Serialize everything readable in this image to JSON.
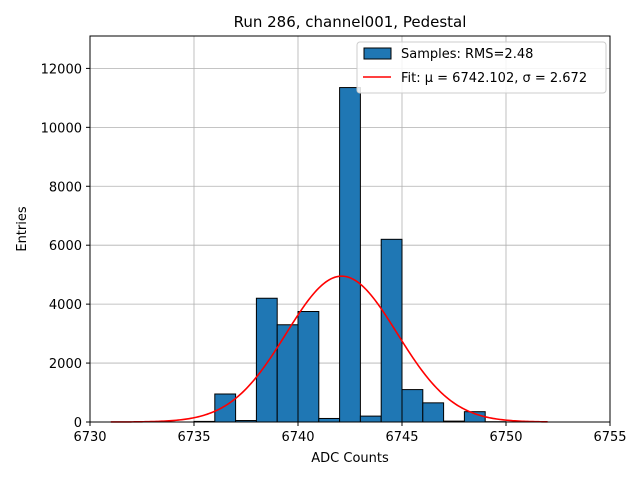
{
  "chart_data": {
    "type": "bar",
    "title": "Run 286, channel001, Pedestal",
    "xlabel": "ADC Counts",
    "ylabel": "Entries",
    "xlim": [
      6730,
      6755
    ],
    "ylim": [
      0,
      13100
    ],
    "xticks": [
      6730,
      6735,
      6740,
      6745,
      6750,
      6755
    ],
    "yticks": [
      0,
      2000,
      4000,
      6000,
      8000,
      10000,
      12000
    ],
    "grid": true,
    "legend_position": "top-right",
    "bin_width": 1,
    "histogram": {
      "name": "Samples: RMS=2.48",
      "color": "#1f77b4",
      "edge_color": "#000000",
      "bin_starts": [
        6735,
        6736,
        6737,
        6738,
        6739,
        6740,
        6741,
        6742,
        6743,
        6744,
        6745,
        6746,
        6747,
        6748,
        6749
      ],
      "values": [
        20,
        950,
        50,
        4200,
        3300,
        3750,
        120,
        11350,
        200,
        6200,
        1100,
        650,
        30,
        350,
        10
      ]
    },
    "fit": {
      "name": "Fit: μ = 6742.102, σ = 2.672",
      "color": "#ff0000",
      "mu": 6742.102,
      "sigma": 2.672,
      "amplitude": 4950,
      "x_range": [
        6731,
        6752
      ]
    }
  }
}
